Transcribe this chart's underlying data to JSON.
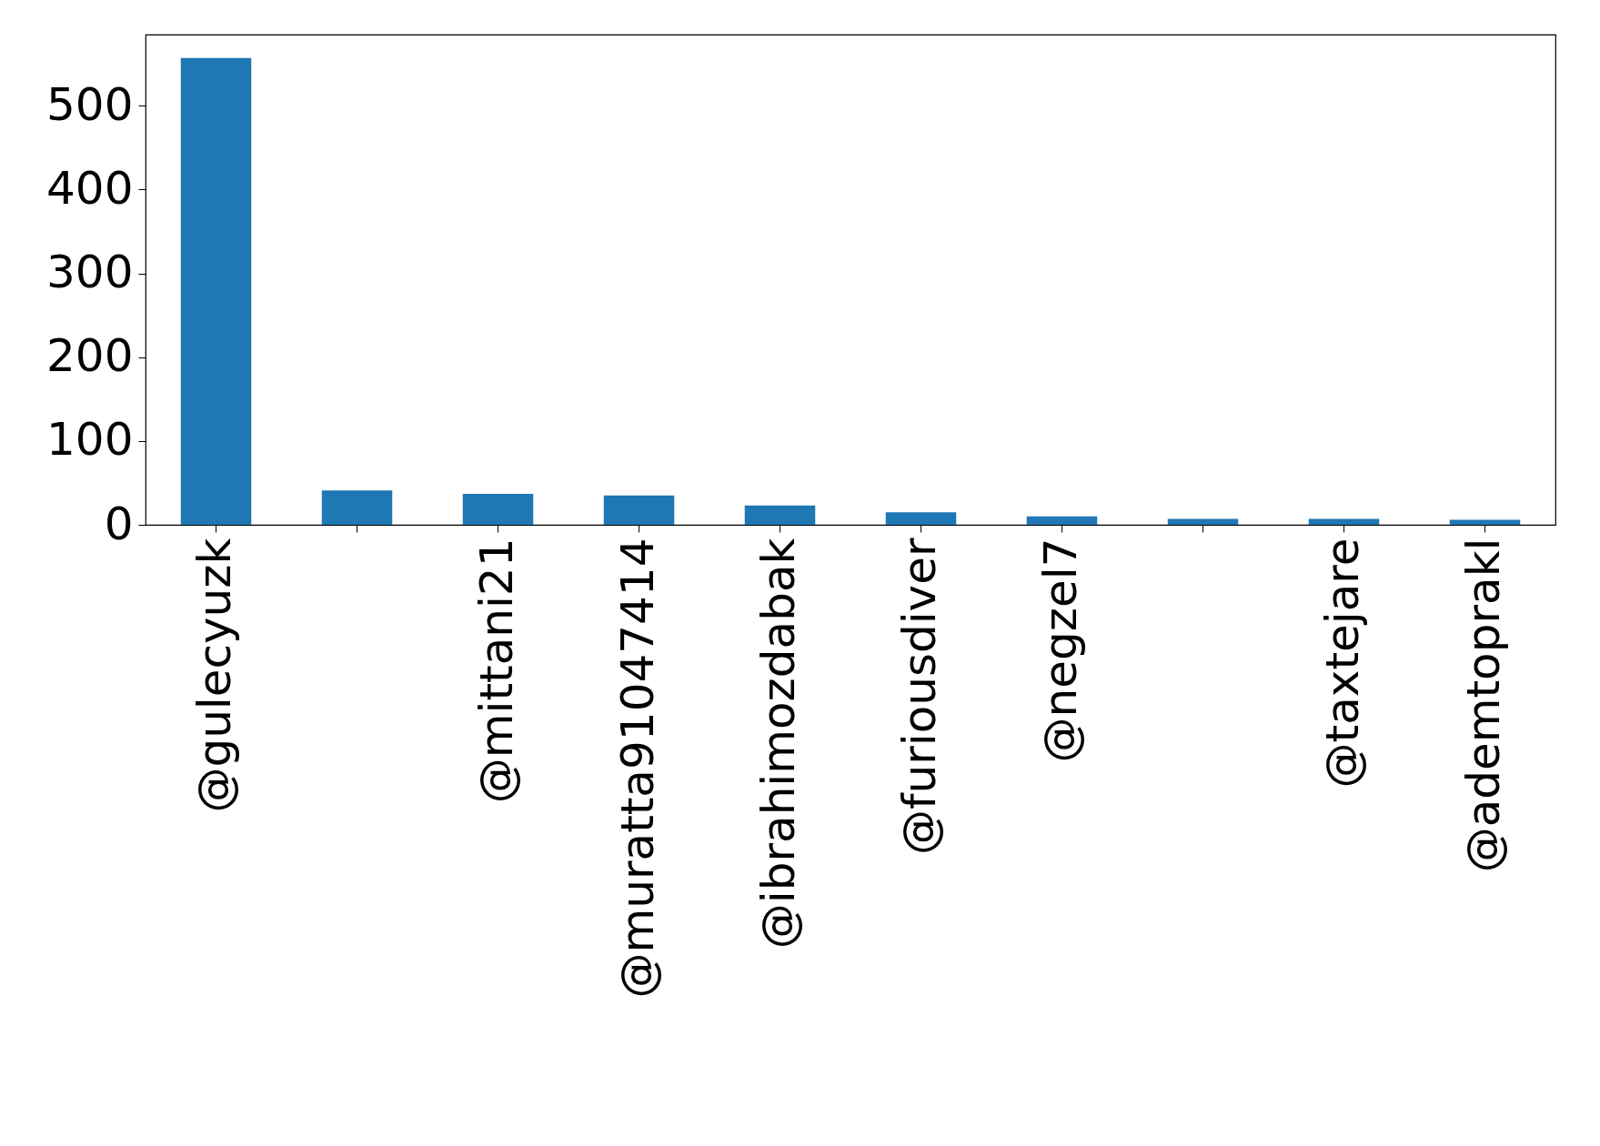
{
  "chart_data": {
    "type": "bar",
    "categories": [
      "@gulecyuzk",
      null,
      "@mittani21",
      "@muratta91047414",
      "@ibrahimozdabak",
      "@furiousdiver",
      "@negzel7",
      null,
      "@taxtejare",
      "@ademtoprakl"
    ],
    "values": [
      557,
      41,
      37,
      35,
      23,
      15,
      10,
      7,
      7,
      6
    ],
    "color": "#1f77b4",
    "ylim": [
      0,
      585
    ],
    "yticks": [
      0,
      100,
      200,
      300,
      400,
      500
    ],
    "grid": false
  }
}
